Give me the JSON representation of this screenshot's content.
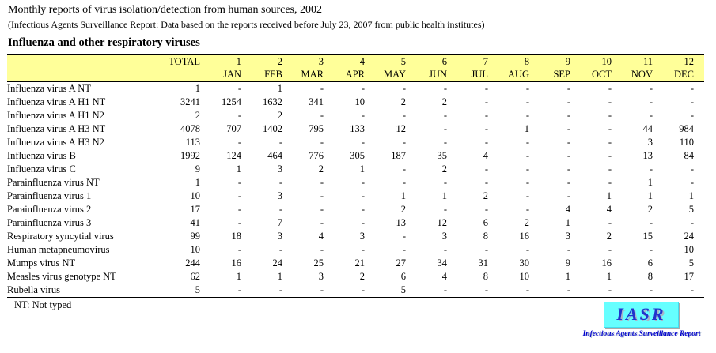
{
  "page": {
    "title": "Monthly reports of virus isolation/detection from human sources, 2002",
    "subtitle": "(Infectious Agents Surveillance Report: Data based on the reports received before July 23, 2007 from public health institutes)",
    "section_title": "Influenza and other respiratory viruses",
    "footnote": "NT: Not typed"
  },
  "table": {
    "header_bg": "#FFFF99",
    "total_label": "TOTAL",
    "month_numbers": [
      "1",
      "2",
      "3",
      "4",
      "5",
      "6",
      "7",
      "8",
      "9",
      "10",
      "11",
      "12"
    ],
    "month_names": [
      "JAN",
      "FEB",
      "MAR",
      "APR",
      "MAY",
      "JUN",
      "JUL",
      "AUG",
      "SEP",
      "OCT",
      "NOV",
      "DEC"
    ],
    "rows": [
      {
        "name": "Influenza virus A NT",
        "total": "1",
        "months": [
          "-",
          "1",
          "-",
          "-",
          "-",
          "-",
          "-",
          "-",
          "-",
          "-",
          "-",
          "-"
        ]
      },
      {
        "name": "Influenza virus A H1 NT",
        "total": "3241",
        "months": [
          "1254",
          "1632",
          "341",
          "10",
          "2",
          "2",
          "-",
          "-",
          "-",
          "-",
          "-",
          "-"
        ]
      },
      {
        "name": "Influenza virus A H1 N2",
        "total": "2",
        "months": [
          "-",
          "2",
          "-",
          "-",
          "-",
          "-",
          "-",
          "-",
          "-",
          "-",
          "-",
          "-"
        ]
      },
      {
        "name": "Influenza virus A H3 NT",
        "total": "4078",
        "months": [
          "707",
          "1402",
          "795",
          "133",
          "12",
          "-",
          "-",
          "1",
          "-",
          "-",
          "44",
          "984"
        ]
      },
      {
        "name": "Influenza virus A H3 N2",
        "total": "113",
        "months": [
          "-",
          "-",
          "-",
          "-",
          "-",
          "-",
          "-",
          "-",
          "-",
          "-",
          "3",
          "110"
        ]
      },
      {
        "name": "Influenza virus B",
        "total": "1992",
        "months": [
          "124",
          "464",
          "776",
          "305",
          "187",
          "35",
          "4",
          "-",
          "-",
          "-",
          "13",
          "84"
        ]
      },
      {
        "name": "Influenza virus C",
        "total": "9",
        "months": [
          "1",
          "3",
          "2",
          "1",
          "-",
          "2",
          "-",
          "-",
          "-",
          "-",
          "-",
          "-"
        ]
      },
      {
        "name": "Parainfluenza virus NT",
        "total": "1",
        "months": [
          "-",
          "-",
          "-",
          "-",
          "-",
          "-",
          "-",
          "-",
          "-",
          "-",
          "1",
          "-"
        ]
      },
      {
        "name": "Parainfluenza virus 1",
        "total": "10",
        "months": [
          "-",
          "3",
          "-",
          "-",
          "1",
          "1",
          "2",
          "-",
          "-",
          "1",
          "1",
          "1"
        ]
      },
      {
        "name": "Parainfluenza virus 2",
        "total": "17",
        "months": [
          "-",
          "-",
          "-",
          "-",
          "2",
          "-",
          "-",
          "-",
          "4",
          "4",
          "2",
          "5"
        ]
      },
      {
        "name": "Parainfluenza virus 3",
        "total": "41",
        "months": [
          "-",
          "7",
          "-",
          "-",
          "13",
          "12",
          "6",
          "2",
          "1",
          "-",
          "-",
          "-"
        ]
      },
      {
        "name": "Respiratory syncytial virus",
        "total": "99",
        "months": [
          "18",
          "3",
          "4",
          "3",
          "-",
          "3",
          "8",
          "16",
          "3",
          "2",
          "15",
          "24"
        ]
      },
      {
        "name": "Human metapneumovirus",
        "total": "10",
        "months": [
          "-",
          "-",
          "-",
          "-",
          "-",
          "-",
          "-",
          "-",
          "-",
          "-",
          "-",
          "10"
        ]
      },
      {
        "name": "Mumps virus NT",
        "total": "244",
        "months": [
          "16",
          "24",
          "25",
          "21",
          "27",
          "34",
          "31",
          "30",
          "9",
          "16",
          "6",
          "5"
        ]
      },
      {
        "name": "Measles virus genotype NT",
        "total": "62",
        "months": [
          "1",
          "1",
          "3",
          "2",
          "6",
          "4",
          "8",
          "10",
          "1",
          "1",
          "8",
          "17"
        ]
      },
      {
        "name": "Rubella virus",
        "total": "5",
        "months": [
          "-",
          "-",
          "-",
          "-",
          "5",
          "-",
          "-",
          "-",
          "-",
          "-",
          "-",
          "-"
        ]
      }
    ]
  },
  "logo": {
    "text": "IASR",
    "caption": "Infectious Agents Surveillance Report",
    "box_bg": "#66FFFF",
    "text_color": "#2233CC",
    "caption_color": "#0000CC"
  }
}
